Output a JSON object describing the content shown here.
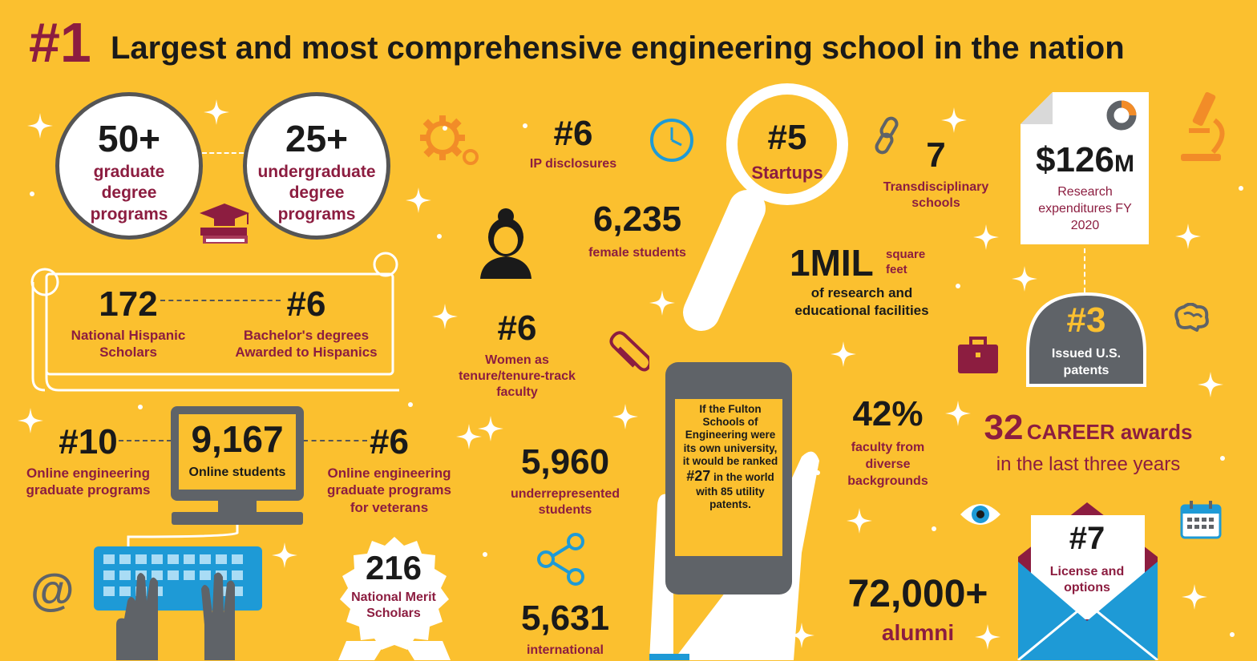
{
  "header": {
    "rank": "#1",
    "title": "Largest and most comprehensive engineering school in the nation"
  },
  "degrees": {
    "graduate": {
      "value": "50+",
      "label": "graduate degree programs"
    },
    "undergraduate": {
      "value": "25+",
      "label": "undergraduate degree programs"
    }
  },
  "hispanic": {
    "scholars": {
      "value": "172",
      "label": "National Hispanic Scholars"
    },
    "bachelors": {
      "value": "#6",
      "label": "Bachelor's degrees Awarded to Hispanics"
    }
  },
  "online": {
    "grad_rank": {
      "value": "#10",
      "label": "Online engineering graduate programs"
    },
    "students": {
      "value": "9,167",
      "label": "Online students"
    },
    "veterans": {
      "value": "#6",
      "label": "Online engineering graduate programs for veterans"
    }
  },
  "merit": {
    "value": "216",
    "label": "National Merit Scholars"
  },
  "ip": {
    "value": "#6",
    "label": "IP disclosures"
  },
  "female": {
    "value": "6,235",
    "label": "female students"
  },
  "women_faculty": {
    "value": "#6",
    "label": "Women as tenure/tenure-track faculty"
  },
  "underrep": {
    "value": "5,960",
    "label": "underrepresented students"
  },
  "international": {
    "value": "5,631",
    "label": "international"
  },
  "startups": {
    "value": "#5",
    "label": "Startups"
  },
  "facilities": {
    "value": "1MIL",
    "unit": "square feet",
    "label": "of research and educational facilities"
  },
  "transdisciplinary": {
    "value": "7",
    "label": "Transdisciplinary schools"
  },
  "research": {
    "value": "$126",
    "unit": "M",
    "label": "Research expenditures FY 2020"
  },
  "patents": {
    "value": "#3",
    "label": "Issued U.S. patents"
  },
  "phone": {
    "text": "If the Fulton Schools of Engineering were its own university, it would be ranked",
    "rank": "#27",
    "text2": "in the world with 85 utility patents."
  },
  "diverse": {
    "value": "42%",
    "label": "faculty from diverse backgrounds"
  },
  "career": {
    "value": "32",
    "label": "CAREER awards",
    "sub": "in the last three years"
  },
  "alumni": {
    "value": "72,000+",
    "label": "alumni"
  },
  "license": {
    "value": "#7",
    "label": "License and options"
  },
  "icons": [
    "gear-icon",
    "clock-icon",
    "link-icon",
    "microscope-icon",
    "graduation-cap-icon",
    "woman-icon",
    "paperclip-icon",
    "briefcase-icon",
    "brain-icon",
    "eye-icon",
    "calendar-icon",
    "share-icon",
    "at-icon",
    "donut-chart-icon",
    "magnifier-icon",
    "computer-icon",
    "keyboard-icon",
    "phone-icon",
    "envelope-icon",
    "scroll-icon"
  ],
  "colors": {
    "background": "#fbc02f",
    "maroon": "#8c1d40",
    "grey": "#5f6368",
    "orange": "#f28c28",
    "blue": "#1e9ad6"
  }
}
